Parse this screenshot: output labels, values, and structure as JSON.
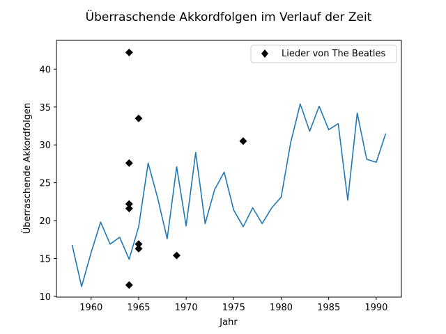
{
  "chart_data": {
    "type": "line",
    "title": "Überraschende Akkordfolgen im Verlauf der Zeit",
    "xlabel": "Jahr",
    "ylabel": "Überraschende Akkordfolgen",
    "xlim": [
      1956.35,
      1992.65
    ],
    "ylim": [
      9.9,
      43.8
    ],
    "xticks": [
      1960,
      1965,
      1970,
      1975,
      1980,
      1985,
      1990
    ],
    "yticks": [
      10,
      15,
      20,
      25,
      30,
      35,
      40
    ],
    "grid": false,
    "legend_position": "top-right",
    "colors": {
      "line": "#1f77b4",
      "markers": "#000000"
    },
    "series": [
      {
        "type": "line",
        "x": [
          1958,
          1959,
          1960,
          1961,
          1962,
          1963,
          1964,
          1965,
          1966,
          1967,
          1968,
          1969,
          1970,
          1971,
          1972,
          1973,
          1974,
          1975,
          1976,
          1977,
          1978,
          1979,
          1980,
          1981,
          1982,
          1983,
          1984,
          1985,
          1986,
          1987,
          1988,
          1989,
          1990,
          1991
        ],
        "values": [
          16.8,
          11.3,
          15.8,
          19.8,
          16.9,
          17.8,
          14.9,
          19.2,
          27.6,
          23.0,
          17.6,
          27.1,
          19.3,
          29.0,
          19.6,
          24.1,
          26.4,
          21.4,
          19.2,
          21.7,
          19.6,
          21.7,
          23.1,
          30.3,
          35.4,
          31.8,
          35.1,
          32.0,
          32.8,
          22.7,
          34.2,
          28.1,
          27.7,
          31.5
        ]
      },
      {
        "name": "Lieder von The Beatles",
        "type": "scatter",
        "marker": "diamond",
        "x": [
          1964,
          1964,
          1964,
          1964,
          1964,
          1965,
          1965,
          1965,
          1969,
          1976
        ],
        "values": [
          42.2,
          27.6,
          22.2,
          21.6,
          11.5,
          33.5,
          16.9,
          16.3,
          15.4,
          30.5
        ]
      }
    ]
  }
}
